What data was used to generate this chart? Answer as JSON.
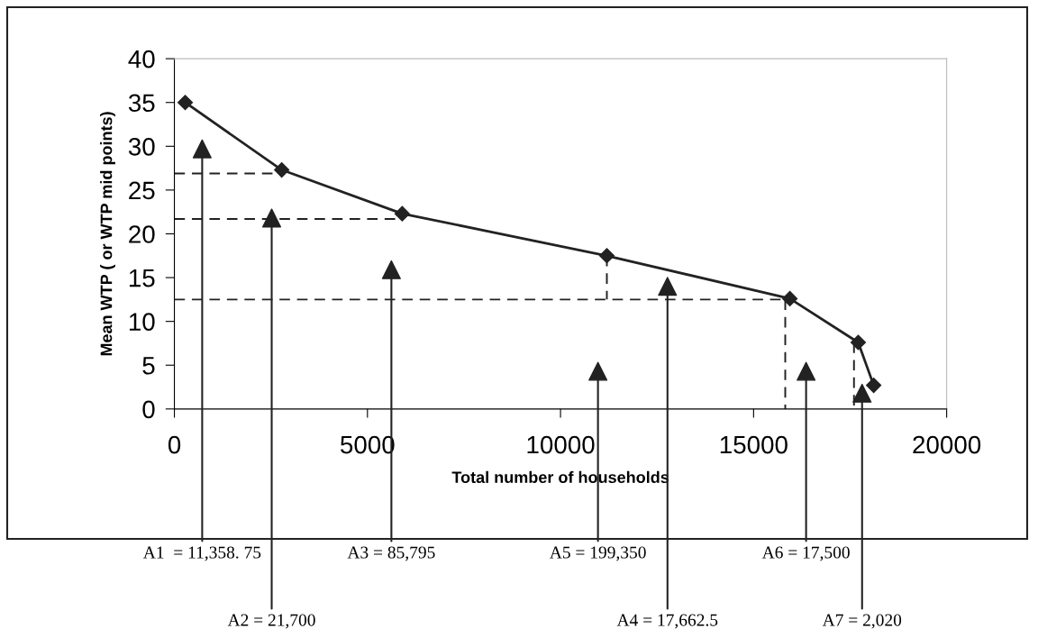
{
  "chart_data": {
    "type": "line",
    "xlabel": "Total number of households",
    "ylabel": "Mean WTP ( or WTP mid points)",
    "xlim": [
      0,
      20000
    ],
    "ylim": [
      0,
      40
    ],
    "xticks": [
      0,
      5000,
      10000,
      15000,
      20000
    ],
    "yticks": [
      0,
      5,
      10,
      15,
      20,
      25,
      30,
      35,
      40
    ],
    "grid": false,
    "legend": false,
    "marker": "diamond",
    "line_style": "solid",
    "series": [
      {
        "color": "#222222",
        "x": [
          280,
          2780,
          5900,
          11200,
          15940,
          17710,
          18110
        ],
        "values": [
          35,
          27.3,
          22.3,
          17.5,
          12.6,
          7.6,
          2.7
        ]
      },
      {
        "color": "#222222",
        "marker": "none",
        "line_style": "dashed",
        "x": [
          0,
          2780
        ],
        "values": [
          26.9,
          26.9
        ]
      },
      {
        "color": "#222222",
        "marker": "none",
        "line_style": "dashed",
        "x": [
          0,
          5900
        ],
        "values": [
          21.7,
          21.7
        ]
      },
      {
        "color": "#222222",
        "marker": "none",
        "line_style": "dashed",
        "x": [
          0,
          15940
        ],
        "values": [
          12.5,
          12.5
        ]
      },
      {
        "color": "#222222",
        "marker": "none",
        "line_style": "dashed",
        "x": [
          11200,
          11200
        ],
        "values": [
          17.5,
          12.5
        ]
      },
      {
        "color": "#222222",
        "marker": "none",
        "line_style": "dashed",
        "x": [
          15820,
          15820
        ],
        "values": [
          12.5,
          0
        ]
      },
      {
        "color": "#222222",
        "marker": "none",
        "line_style": "dashed",
        "x": [
          17600,
          17600
        ],
        "values": [
          7.6,
          0
        ]
      },
      {
        "type": "scatter",
        "color": "#222222",
        "marker": "triangle",
        "x": [
          720,
          2520,
          5620,
          10970,
          12770,
          16360,
          17810
        ],
        "values": [
          29.7,
          21.8,
          15.9,
          4.3,
          14.0,
          4.3,
          1.8
        ]
      }
    ],
    "annotations": [
      {
        "text": "A1  = 11,358. 75",
        "x": 720,
        "y": 29.7
      },
      {
        "text": "A2 = 21,700",
        "x": 2520,
        "y": 21.8
      },
      {
        "text": "A3 = 85,795",
        "x": 5620,
        "y": 15.9
      },
      {
        "text": "A5 = 199,350",
        "x": 10970,
        "y": 4.3
      },
      {
        "text": "A4 = 17,662.5",
        "x": 12770,
        "y": 14.0
      },
      {
        "text": "A6 = 17,500",
        "x": 16360,
        "y": 4.3
      },
      {
        "text": "A7 = 2,020",
        "x": 17810,
        "y": 1.8
      }
    ]
  }
}
